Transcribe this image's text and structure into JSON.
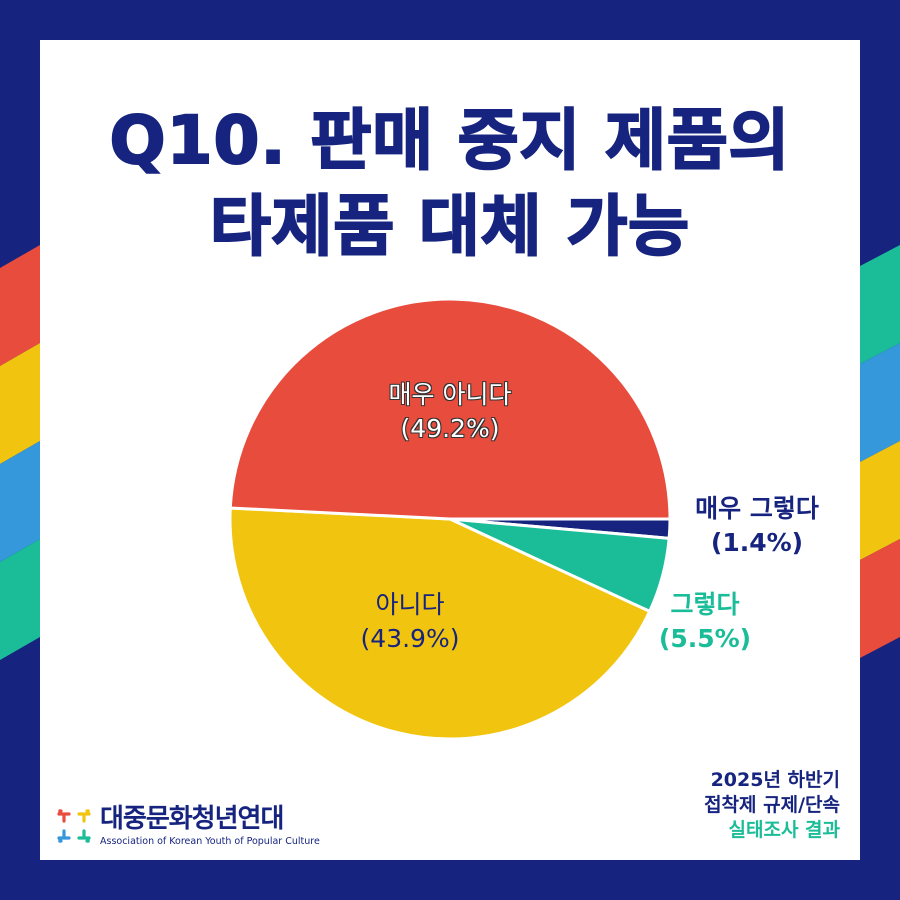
{
  "colors": {
    "navy": "#16247f",
    "red": "#e84c3d",
    "yellow": "#f1c40f",
    "blue": "#3498db",
    "teal": "#1bbd98",
    "white": "#ffffff"
  },
  "header": {
    "title_line1": "Q10. 판매 중지 제품의",
    "title_line2": "타제품 대체 가능"
  },
  "chart_data": {
    "type": "pie",
    "title": "Q10. 판매 중지 제품의 타제품 대체 가능",
    "categories": [
      "매우 그렇다",
      "그렇다",
      "아니다",
      "매우 아니다"
    ],
    "values": [
      1.4,
      5.5,
      43.9,
      49.2
    ],
    "unit": "%",
    "colors": [
      "#16247f",
      "#1bbd98",
      "#f1c40f",
      "#e84c3d"
    ],
    "start_angle": "3 o'clock, clockwise",
    "labels": [
      {
        "name": "매우 그렇다",
        "value": "(1.4%)",
        "position": "outside-right"
      },
      {
        "name": "그렇다",
        "value": "(5.5%)",
        "position": "outside-right"
      },
      {
        "name": "아니다",
        "value": "(43.9%)",
        "position": "inside"
      },
      {
        "name": "매우 아니다",
        "value": "(49.2%)",
        "position": "inside"
      }
    ],
    "legend": "none (direct labels)"
  },
  "labels": {
    "very_no": {
      "name": "매우 아니다",
      "pct": "(49.2%)"
    },
    "no": {
      "name": "아니다",
      "pct": "(43.9%)"
    },
    "very_yes": {
      "name": "매우 그렇다",
      "pct": "(1.4%)"
    },
    "yes": {
      "name": "그렇다",
      "pct": "(5.5%)"
    }
  },
  "logo": {
    "name": "대중문화청년연대",
    "subtitle": "Association of Korean Youth of Popular Culture"
  },
  "footer": {
    "line1": "2025년 하반기",
    "line2": "접착제 규제/단속",
    "line3": "실태조사 결과"
  }
}
